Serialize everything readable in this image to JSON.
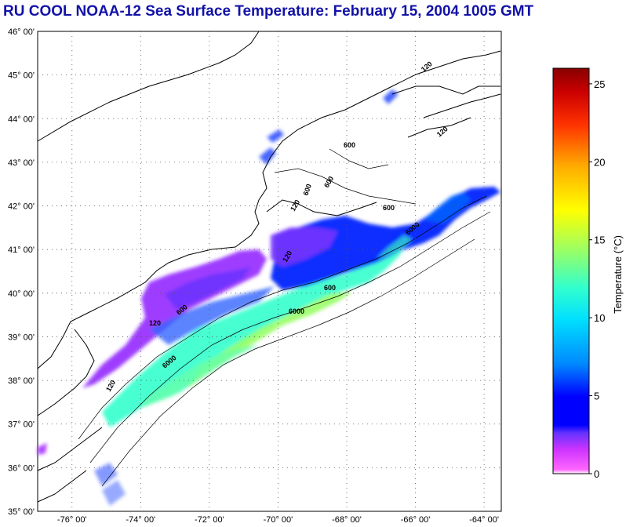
{
  "title": "RU COOL  NOAA-12  Sea Surface Temperature:  February 15, 2004 1005 GMT",
  "map": {
    "lat_labels": [
      "46° 00'",
      "45° 00'",
      "44° 00'",
      "43° 00'",
      "42° 00'",
      "41° 00'",
      "40° 00'",
      "39° 00'",
      "38° 00'",
      "37° 00'",
      "36° 00'",
      "35° 00'"
    ],
    "lon_labels": [
      "-76° 00'",
      "-74° 00'",
      "-72° 00'",
      "-70° 00'",
      "-68° 00'",
      "-66° 00'",
      "-64° 00'"
    ],
    "lat_range": [
      35,
      46
    ],
    "lon_range": [
      -77,
      -63.5
    ],
    "grid": "dotted",
    "contour_labels": [
      "120",
      "120",
      "600",
      "600",
      "120",
      "600",
      "600",
      "120",
      "600",
      "6000",
      "6000",
      "120",
      "600",
      "6000",
      "120"
    ]
  },
  "colorbar": {
    "label": "Temperature (°C)",
    "ticks": [
      "0",
      "5",
      "10",
      "15",
      "20",
      "25"
    ],
    "range": [
      0,
      26
    ],
    "colors": [
      "#ff66ff",
      "#cc33ff",
      "#6633ff",
      "#0000ff",
      "#0066ff",
      "#00ccff",
      "#33ffcc",
      "#99ff66",
      "#ffff00",
      "#ffaa00",
      "#ff4400",
      "#cc0000",
      "#880000"
    ]
  }
}
